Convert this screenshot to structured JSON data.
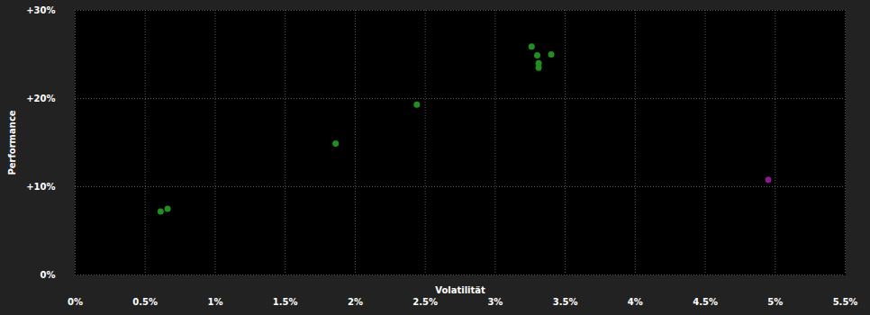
{
  "chart_data": {
    "type": "scatter",
    "xlabel": "Volatilität",
    "ylabel": "Performance",
    "x": [
      0.61,
      0.66,
      1.86,
      2.44,
      3.26,
      3.3,
      3.4,
      3.31,
      3.31,
      4.95
    ],
    "values": [
      7.2,
      7.5,
      14.9,
      19.3,
      25.9,
      24.9,
      25.0,
      24.0,
      23.5,
      10.8
    ],
    "colors": [
      "#1f8f1f",
      "#1f8f1f",
      "#1f8f1f",
      "#1f8f1f",
      "#1f8f1f",
      "#1f8f1f",
      "#1f8f1f",
      "#1f8f1f",
      "#1f8f1f",
      "#8b1a8b"
    ],
    "xlim": [
      0,
      5.5
    ],
    "ylim": [
      0,
      30
    ],
    "xticks": [
      {
        "value": 0,
        "label": "0%"
      },
      {
        "value": 0.5,
        "label": "0.5%"
      },
      {
        "value": 1,
        "label": "1%"
      },
      {
        "value": 1.5,
        "label": "1.5%"
      },
      {
        "value": 2,
        "label": "2%"
      },
      {
        "value": 2.5,
        "label": "2.5%"
      },
      {
        "value": 3,
        "label": "3%"
      },
      {
        "value": 3.5,
        "label": "3.5%"
      },
      {
        "value": 4,
        "label": "4%"
      },
      {
        "value": 4.5,
        "label": "4.5%"
      },
      {
        "value": 5,
        "label": "5%"
      },
      {
        "value": 5.5,
        "label": "5.5%"
      }
    ],
    "yticks": [
      {
        "value": 0,
        "label": "0%"
      },
      {
        "value": 10,
        "label": "+10%"
      },
      {
        "value": 20,
        "label": "+20%"
      },
      {
        "value": 30,
        "label": "+30%"
      }
    ],
    "grid": true,
    "marker": "circle"
  }
}
